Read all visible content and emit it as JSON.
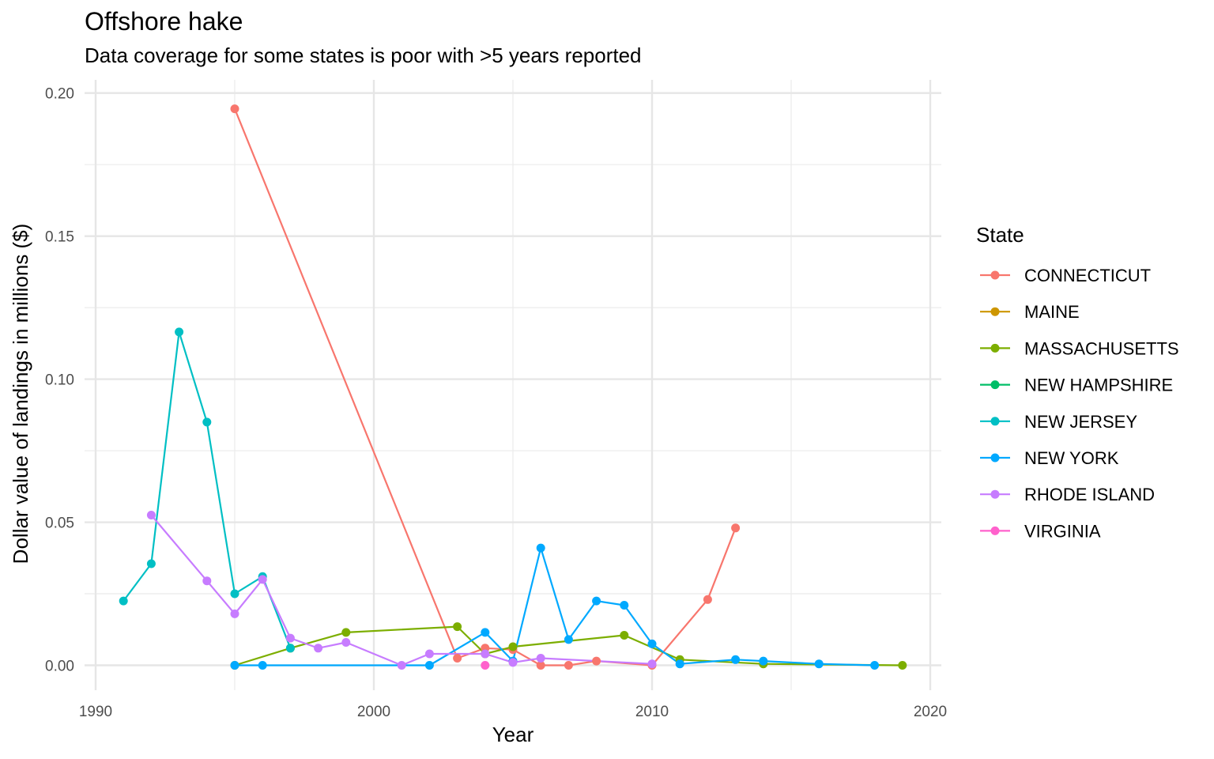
{
  "chart_data": {
    "type": "line",
    "title": "Offshore hake",
    "subtitle": "Data coverage for some states is poor with >5 years reported",
    "xlabel": "Year",
    "ylabel": "Dollar value of landings in millions ($)",
    "xlim": [
      1990,
      2020
    ],
    "ylim": [
      0,
      0.2
    ],
    "x_ticks": [
      1990,
      2000,
      2010,
      2020
    ],
    "x_tick_labels": [
      "1990",
      "2000",
      "2010",
      "2020"
    ],
    "y_ticks": [
      0,
      0.05,
      0.1,
      0.15,
      0.2
    ],
    "y_tick_labels": [
      "0.00",
      "0.05",
      "0.10",
      "0.15",
      "0.20"
    ],
    "grid": true,
    "legend": {
      "title": "State",
      "position": "right"
    },
    "series": [
      {
        "name": "CONNECTICUT",
        "color": "#F8766D",
        "points": [
          [
            1995,
            0.1945
          ],
          [
            2003,
            0.0025
          ],
          [
            2004,
            0.006
          ],
          [
            2005,
            0.0055
          ],
          [
            2006,
            0.0
          ],
          [
            2007,
            0.0
          ],
          [
            2008,
            0.0015
          ],
          [
            2010,
            0.0
          ],
          [
            2012,
            0.023
          ],
          [
            2013,
            0.048
          ]
        ]
      },
      {
        "name": "MAINE",
        "color": "#CD9600",
        "points": []
      },
      {
        "name": "MASSACHUSETTS",
        "color": "#7CAE00",
        "points": [
          [
            1995,
            0.0
          ],
          [
            1997,
            0.006
          ],
          [
            1999,
            0.0115
          ],
          [
            2003,
            0.0135
          ],
          [
            2004,
            0.004
          ],
          [
            2005,
            0.0065
          ],
          [
            2009,
            0.0105
          ],
          [
            2011,
            0.002
          ],
          [
            2014,
            0.0005
          ],
          [
            2019,
            0.0
          ]
        ]
      },
      {
        "name": "NEW HAMPSHIRE",
        "color": "#00BE67",
        "points": []
      },
      {
        "name": "NEW JERSEY",
        "color": "#00BFC4",
        "points": [
          [
            1991,
            0.0225
          ],
          [
            1992,
            0.0355
          ],
          [
            1993,
            0.1165
          ],
          [
            1994,
            0.085
          ],
          [
            1995,
            0.025
          ],
          [
            1996,
            0.031
          ],
          [
            1997,
            0.006
          ]
        ]
      },
      {
        "name": "NEW YORK",
        "color": "#00A9FF",
        "points": [
          [
            1995,
            0.0
          ],
          [
            1996,
            0.0
          ],
          [
            2002,
            0.0
          ],
          [
            2004,
            0.0115
          ],
          [
            2005,
            0.0015
          ],
          [
            2006,
            0.041
          ],
          [
            2007,
            0.009
          ],
          [
            2008,
            0.0225
          ],
          [
            2009,
            0.021
          ],
          [
            2010,
            0.0075
          ],
          [
            2011,
            0.0005
          ],
          [
            2013,
            0.002
          ],
          [
            2014,
            0.0015
          ],
          [
            2016,
            0.0005
          ],
          [
            2018,
            0.0
          ]
        ]
      },
      {
        "name": "RHODE ISLAND",
        "color": "#C77CFF",
        "points": [
          [
            1992,
            0.0525
          ],
          [
            1994,
            0.0295
          ],
          [
            1995,
            0.018
          ],
          [
            1996,
            0.03
          ],
          [
            1997,
            0.0095
          ],
          [
            1998,
            0.006
          ],
          [
            1999,
            0.008
          ],
          [
            2001,
            0.0
          ],
          [
            2002,
            0.004
          ],
          [
            2004,
            0.004
          ],
          [
            2005,
            0.001
          ],
          [
            2006,
            0.0025
          ],
          [
            2010,
            0.0005
          ]
        ]
      },
      {
        "name": "VIRGINIA",
        "color": "#FF61CC",
        "points": [
          [
            2004,
            0.0
          ]
        ]
      }
    ]
  }
}
